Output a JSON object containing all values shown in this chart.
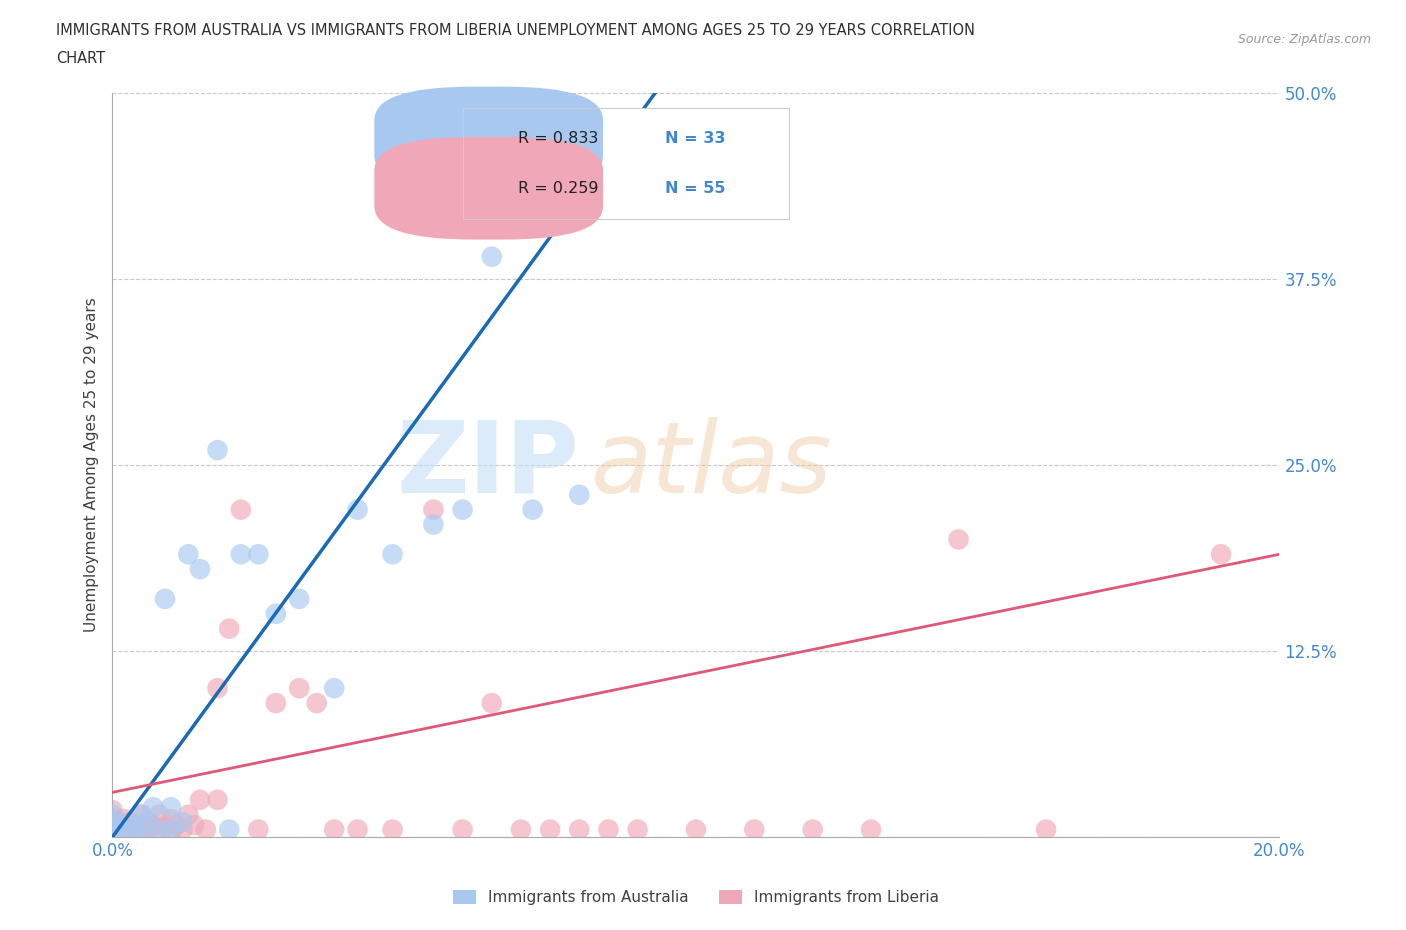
{
  "title_line1": "IMMIGRANTS FROM AUSTRALIA VS IMMIGRANTS FROM LIBERIA UNEMPLOYMENT AMONG AGES 25 TO 29 YEARS CORRELATION",
  "title_line2": "CHART",
  "source_text": "Source: ZipAtlas.com",
  "ylabel": "Unemployment Among Ages 25 to 29 years",
  "xlim": [
    0.0,
    0.2
  ],
  "ylim": [
    0.0,
    0.5
  ],
  "australia_R": 0.833,
  "australia_N": 33,
  "liberia_R": 0.259,
  "liberia_N": 55,
  "australia_color": "#a8c8f0",
  "liberia_color": "#f0a8b8",
  "australia_line_color": "#1a6ab5",
  "liberia_line_color": "#e05878",
  "legend_label_australia": "Immigrants from Australia",
  "legend_label_liberia": "Immigrants from Liberia",
  "background_color": "#ffffff",
  "grid_color": "#c8c8c8",
  "title_color": "#303030",
  "axis_label_color": "#404040",
  "tick_label_color": "#4488cc",
  "australia_x": [
    0.0,
    0.0,
    0.0,
    0.001,
    0.002,
    0.003,
    0.004,
    0.005,
    0.005,
    0.006,
    0.007,
    0.008,
    0.009,
    0.01,
    0.01,
    0.012,
    0.013,
    0.015,
    0.018,
    0.02,
    0.022,
    0.025,
    0.028,
    0.032,
    0.038,
    0.042,
    0.048,
    0.055,
    0.06,
    0.065,
    0.072,
    0.08,
    0.092
  ],
  "australia_y": [
    0.005,
    0.01,
    0.015,
    0.005,
    0.005,
    0.01,
    0.005,
    0.0,
    0.015,
    0.01,
    0.02,
    0.005,
    0.16,
    0.005,
    0.02,
    0.01,
    0.19,
    0.18,
    0.26,
    0.005,
    0.19,
    0.19,
    0.15,
    0.16,
    0.1,
    0.22,
    0.19,
    0.21,
    0.22,
    0.39,
    0.22,
    0.23,
    0.48
  ],
  "liberia_x": [
    0.0,
    0.0,
    0.0,
    0.0,
    0.0,
    0.001,
    0.001,
    0.002,
    0.002,
    0.003,
    0.003,
    0.004,
    0.005,
    0.005,
    0.005,
    0.006,
    0.006,
    0.007,
    0.008,
    0.008,
    0.009,
    0.01,
    0.01,
    0.011,
    0.012,
    0.013,
    0.014,
    0.015,
    0.016,
    0.018,
    0.018,
    0.02,
    0.022,
    0.025,
    0.028,
    0.032,
    0.035,
    0.038,
    0.042,
    0.048,
    0.055,
    0.06,
    0.065,
    0.07,
    0.075,
    0.08,
    0.085,
    0.09,
    0.1,
    0.11,
    0.12,
    0.13,
    0.145,
    0.16,
    0.19
  ],
  "liberia_y": [
    0.0,
    0.005,
    0.008,
    0.012,
    0.018,
    0.003,
    0.01,
    0.005,
    0.012,
    0.003,
    0.01,
    0.006,
    0.0,
    0.006,
    0.015,
    0.003,
    0.01,
    0.008,
    0.005,
    0.015,
    0.007,
    0.003,
    0.012,
    0.008,
    0.005,
    0.015,
    0.008,
    0.025,
    0.005,
    0.025,
    0.1,
    0.14,
    0.22,
    0.005,
    0.09,
    0.1,
    0.09,
    0.005,
    0.005,
    0.005,
    0.22,
    0.005,
    0.09,
    0.005,
    0.005,
    0.005,
    0.005,
    0.005,
    0.005,
    0.005,
    0.005,
    0.005,
    0.2,
    0.005,
    0.19
  ],
  "aus_line_x0": 0.0,
  "aus_line_y0": 0.0,
  "aus_line_x1": 0.093,
  "aus_line_y1": 0.5,
  "lib_line_x0": 0.0,
  "lib_line_y0": 0.03,
  "lib_line_x1": 0.2,
  "lib_line_y1": 0.19
}
